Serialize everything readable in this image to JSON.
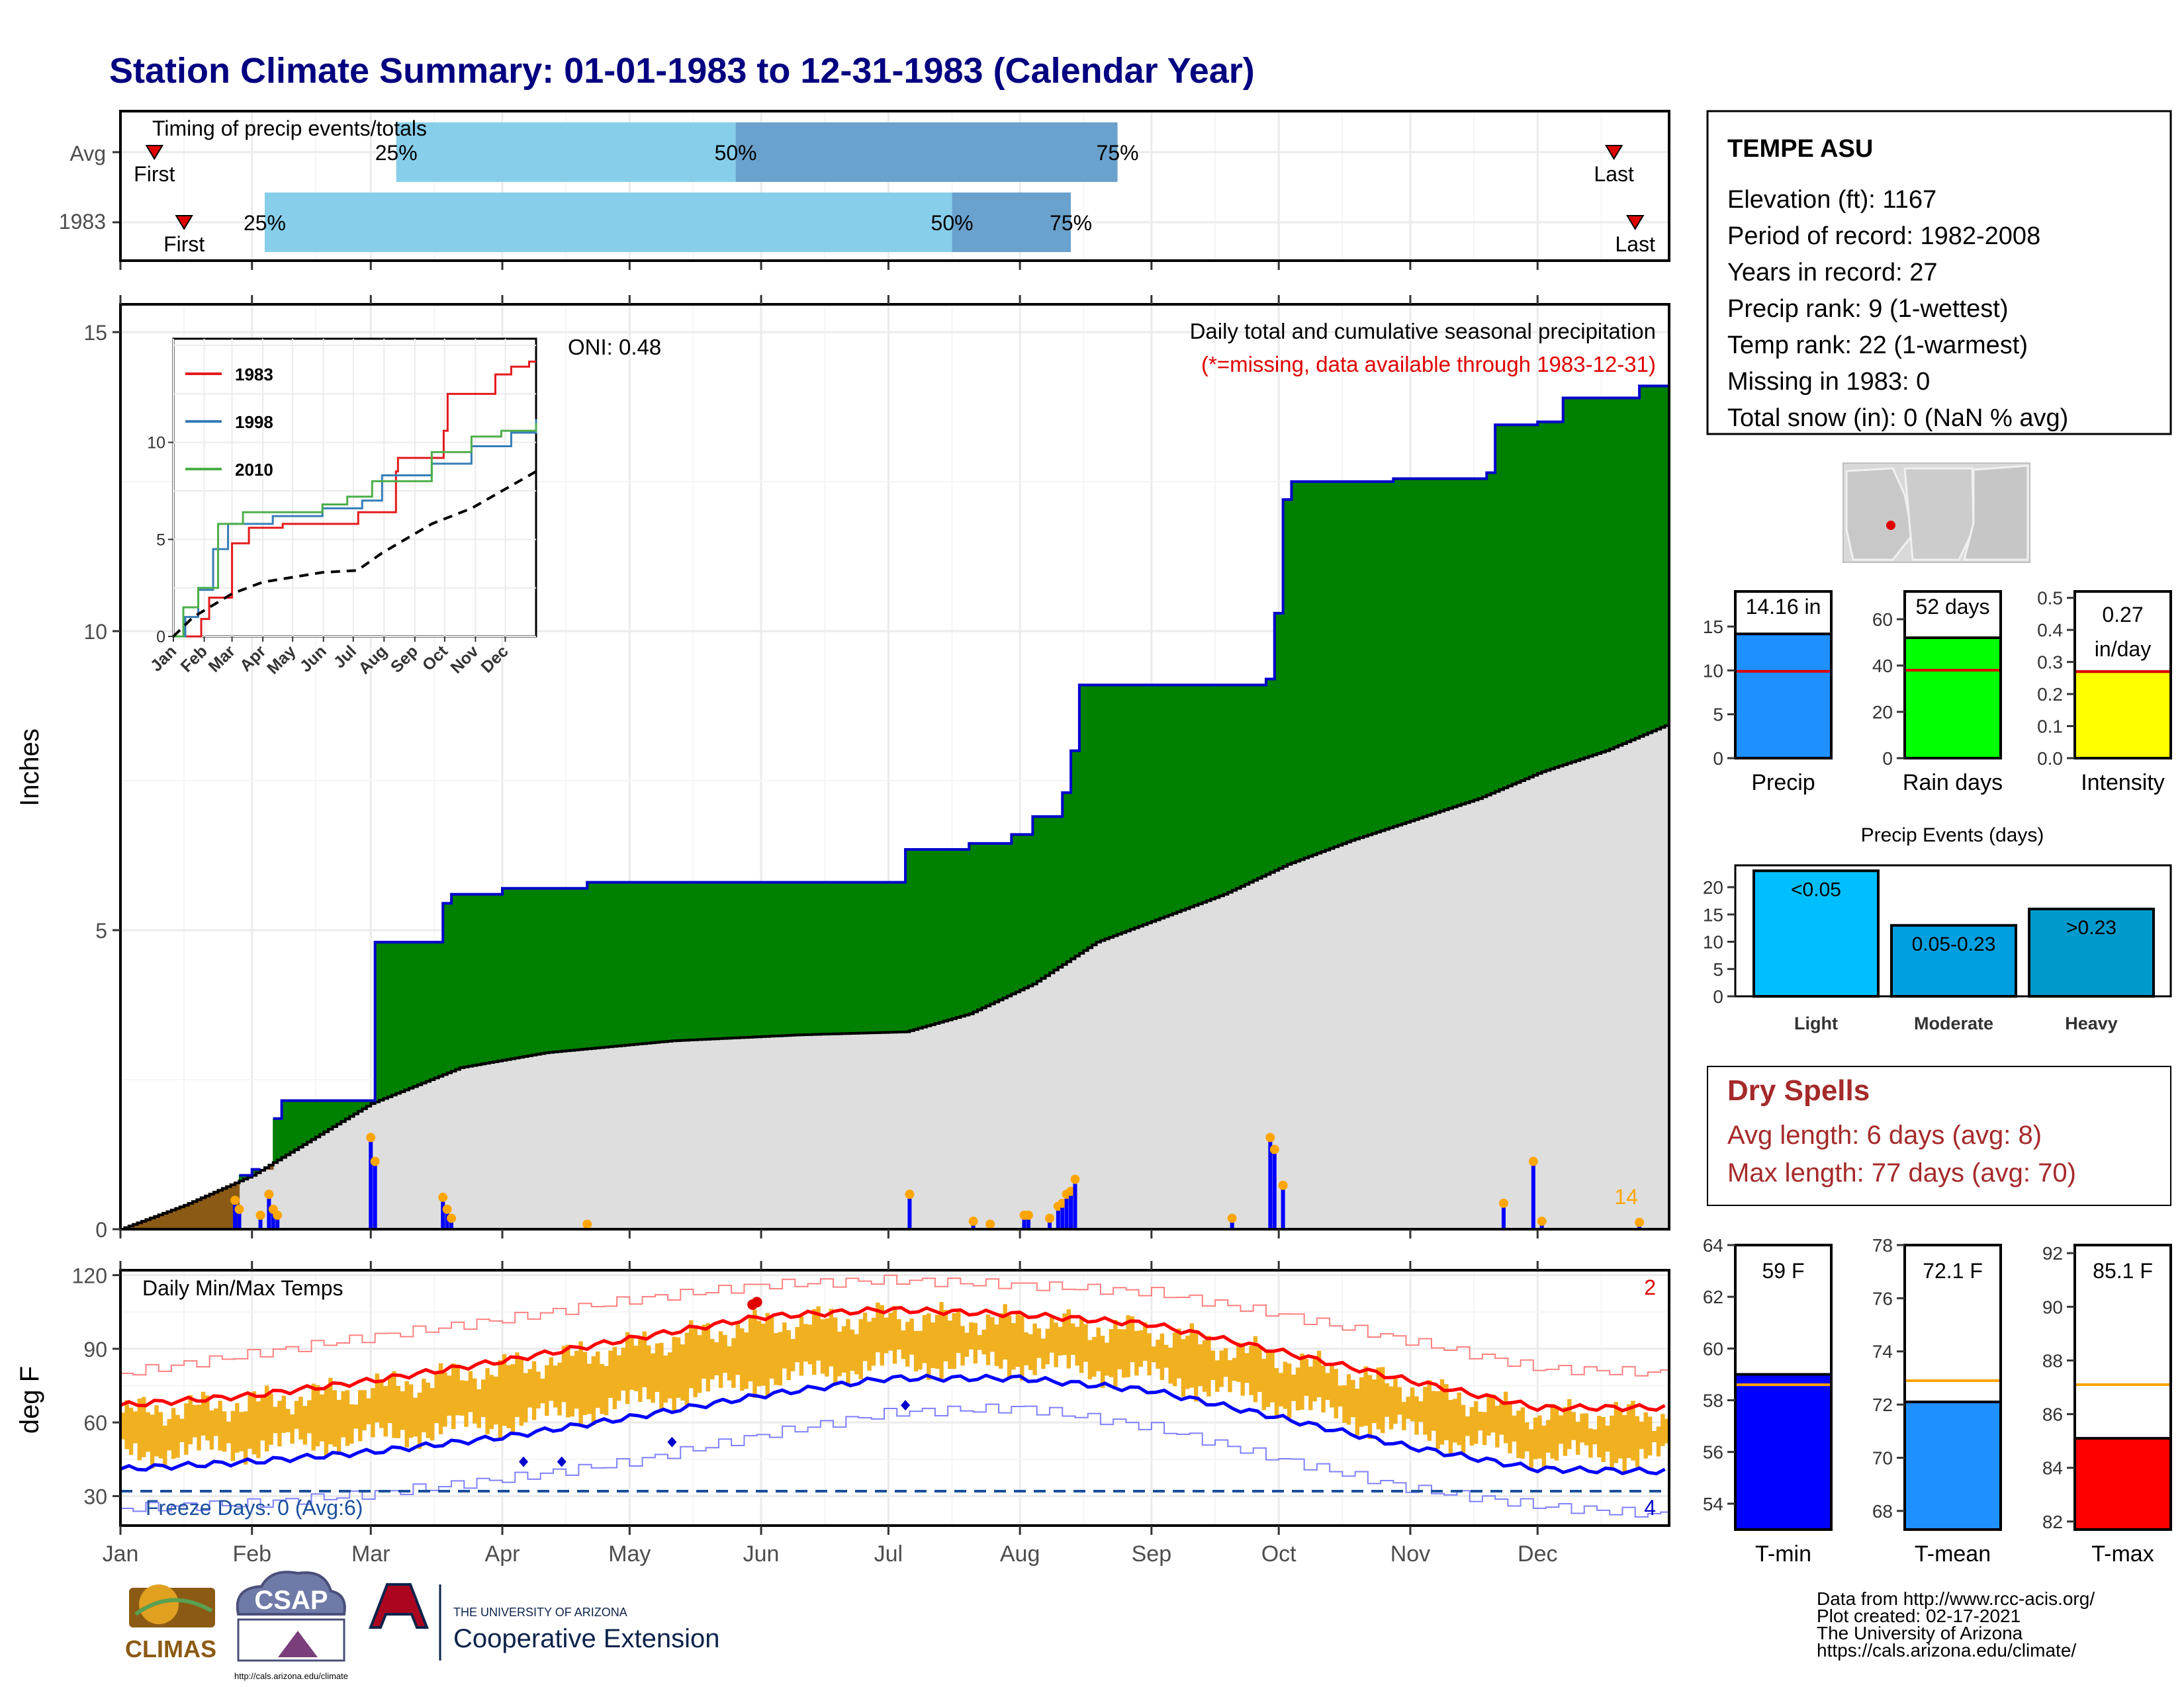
{
  "title": "Station Climate Summary: 01-01-1983 to 12-31-1983 (Calendar Year)",
  "timing": {
    "label": "Timing of precip events/totals",
    "rows": [
      {
        "name": "Avg",
        "first": 8,
        "p25": 65,
        "p50": 145,
        "p75": 235,
        "last": 352
      },
      {
        "name": "1983",
        "first": 15,
        "p25": 34,
        "p50": 196,
        "p75": 224,
        "last": 357
      }
    ],
    "first_label": "First",
    "last_label": "Last",
    "p25_label": "25%",
    "p50_label": "50%",
    "p75_label": "75%",
    "colors": {
      "early": "#87ceeb",
      "late": "#6aa2cd",
      "marker": "#e00000"
    }
  },
  "main": {
    "ylabel": "Inches",
    "header": "Daily total and cumulative seasonal precipitation",
    "missing_note": "(*=missing, data available through 1983-12-31)",
    "oni": "ONI: 0.48",
    "days_count_label": "14",
    "ylim": [
      0,
      15
    ],
    "yticks": [
      "0",
      "5",
      "10",
      "15"
    ],
    "colors": {
      "above": "#008000",
      "below": "#8b5a14",
      "normal": "#dedede",
      "cum_line": "#0000cc",
      "bars": "#0000ff",
      "dots": "#ffa500"
    }
  },
  "months": [
    "Jan",
    "Feb",
    "Mar",
    "Apr",
    "May",
    "Jun",
    "Jul",
    "Aug",
    "Sep",
    "Oct",
    "Nov",
    "Dec"
  ],
  "chart_data": [
    {
      "type": "area",
      "name": "cumulative_precip",
      "ylim": [
        0,
        15
      ],
      "cumulative_1983": [
        [
          0,
          0
        ],
        [
          28,
          0.9
        ],
        [
          31,
          1.0
        ],
        [
          36,
          1.85
        ],
        [
          38,
          2.15
        ],
        [
          59,
          2.15
        ],
        [
          60,
          4.8
        ],
        [
          74,
          4.8
        ],
        [
          76,
          5.45
        ],
        [
          78,
          5.6
        ],
        [
          90,
          5.7
        ],
        [
          110,
          5.8
        ],
        [
          183,
          5.8
        ],
        [
          185,
          6.35
        ],
        [
          200,
          6.45
        ],
        [
          210,
          6.6
        ],
        [
          215,
          6.9
        ],
        [
          222,
          7.3
        ],
        [
          224,
          8.0
        ],
        [
          226,
          9.1
        ],
        [
          270,
          9.2
        ],
        [
          272,
          10.3
        ],
        [
          274,
          12.2
        ],
        [
          276,
          12.5
        ],
        [
          300,
          12.55
        ],
        [
          322,
          12.65
        ],
        [
          324,
          13.45
        ],
        [
          334,
          13.5
        ],
        [
          340,
          13.9
        ],
        [
          357,
          13.9
        ],
        [
          358,
          14.1
        ],
        [
          365,
          14.16
        ]
      ],
      "normal_cumulative": [
        [
          0,
          0
        ],
        [
          15,
          0.4
        ],
        [
          31,
          0.9
        ],
        [
          59,
          2.1
        ],
        [
          80,
          2.7
        ],
        [
          100,
          2.95
        ],
        [
          130,
          3.15
        ],
        [
          160,
          3.25
        ],
        [
          185,
          3.3
        ],
        [
          200,
          3.6
        ],
        [
          215,
          4.1
        ],
        [
          230,
          4.8
        ],
        [
          245,
          5.2
        ],
        [
          260,
          5.6
        ],
        [
          275,
          6.1
        ],
        [
          290,
          6.5
        ],
        [
          305,
          6.85
        ],
        [
          320,
          7.2
        ],
        [
          335,
          7.65
        ],
        [
          350,
          8.0
        ],
        [
          365,
          8.45
        ]
      ],
      "daily_bars": [
        [
          27,
          0.45
        ],
        [
          28,
          0.3
        ],
        [
          33,
          0.2
        ],
        [
          35,
          0.55
        ],
        [
          36,
          0.3
        ],
        [
          37,
          0.2
        ],
        [
          59,
          1.5
        ],
        [
          60,
          1.1
        ],
        [
          76,
          0.5
        ],
        [
          77,
          0.3
        ],
        [
          78,
          0.15
        ],
        [
          100,
          0.02
        ],
        [
          110,
          0.05
        ],
        [
          186,
          0.55
        ],
        [
          201,
          0.1
        ],
        [
          205,
          0.05
        ],
        [
          213,
          0.2
        ],
        [
          214,
          0.2
        ],
        [
          219,
          0.15
        ],
        [
          221,
          0.35
        ],
        [
          222,
          0.4
        ],
        [
          223,
          0.55
        ],
        [
          224,
          0.6
        ],
        [
          225,
          0.8
        ],
        [
          262,
          0.15
        ],
        [
          271,
          1.5
        ],
        [
          272,
          1.3
        ],
        [
          274,
          0.7
        ],
        [
          326,
          0.4
        ],
        [
          333,
          1.1
        ],
        [
          335,
          0.1
        ],
        [
          358,
          0.08
        ]
      ]
    },
    {
      "type": "line",
      "name": "inset_cumulative",
      "ylim": [
        0,
        15
      ],
      "series": [
        {
          "name": "1983",
          "color": "#e41a1c",
          "points": [
            [
              0,
              0
            ],
            [
              28,
              0.9
            ],
            [
              36,
              2.0
            ],
            [
              59,
              4.8
            ],
            [
              76,
              5.6
            ],
            [
              110,
              5.8
            ],
            [
              183,
              5.8
            ],
            [
              186,
              6.4
            ],
            [
              224,
              8.5
            ],
            [
              226,
              9.2
            ],
            [
              272,
              10.6
            ],
            [
              276,
              12.5
            ],
            [
              324,
              13.5
            ],
            [
              340,
              13.9
            ],
            [
              358,
              14.16
            ],
            [
              365,
              14.16
            ]
          ]
        },
        {
          "name": "1998",
          "color": "#377eb8",
          "points": [
            [
              0,
              0
            ],
            [
              12,
              1.0
            ],
            [
              25,
              2.4
            ],
            [
              40,
              4.5
            ],
            [
              55,
              5.8
            ],
            [
              100,
              6.2
            ],
            [
              150,
              6.6
            ],
            [
              190,
              7.0
            ],
            [
              210,
              8.3
            ],
            [
              260,
              8.9
            ],
            [
              300,
              9.8
            ],
            [
              340,
              10.5
            ],
            [
              365,
              11.2
            ]
          ]
        },
        {
          "name": "2010",
          "color": "#4daf4a",
          "points": [
            [
              0,
              0
            ],
            [
              10,
              1.5
            ],
            [
              25,
              2.5
            ],
            [
              45,
              5.8
            ],
            [
              70,
              6.4
            ],
            [
              150,
              6.8
            ],
            [
              175,
              7.2
            ],
            [
              200,
              8.0
            ],
            [
              260,
              9.5
            ],
            [
              300,
              10.3
            ],
            [
              330,
              10.6
            ],
            [
              365,
              11.0
            ]
          ]
        },
        {
          "name": "Avg",
          "color": "#000000",
          "points": [
            [
              0,
              0
            ],
            [
              20,
              1.0
            ],
            [
              59,
              2.2
            ],
            [
              90,
              2.8
            ],
            [
              150,
              3.3
            ],
            [
              185,
              3.4
            ],
            [
              210,
              4.3
            ],
            [
              260,
              5.8
            ],
            [
              300,
              6.6
            ],
            [
              365,
              8.5
            ]
          ]
        }
      ],
      "yticks": [
        "0",
        "5",
        "10"
      ],
      "xticks": [
        "Jan",
        "Feb",
        "Mar",
        "Apr",
        "May",
        "Jun",
        "Jul",
        "Aug",
        "Sep",
        "Oct",
        "Nov",
        "Dec"
      ]
    },
    {
      "type": "line",
      "name": "daily_temps",
      "title": "Daily Min/Max Temps",
      "ylabel": "deg F",
      "ylim": [
        18,
        122
      ],
      "yticks": [
        "30",
        "60",
        "90",
        "120"
      ],
      "normal_max": [
        [
          0,
          67
        ],
        [
          31,
          71
        ],
        [
          59,
          77
        ],
        [
          90,
          85
        ],
        [
          120,
          94
        ],
        [
          151,
          103
        ],
        [
          181,
          106
        ],
        [
          212,
          104
        ],
        [
          243,
          100
        ],
        [
          273,
          89
        ],
        [
          304,
          77
        ],
        [
          334,
          66
        ],
        [
          365,
          66
        ]
      ],
      "normal_min": [
        [
          0,
          41
        ],
        [
          31,
          44
        ],
        [
          59,
          48
        ],
        [
          90,
          54
        ],
        [
          120,
          62
        ],
        [
          151,
          71
        ],
        [
          181,
          78
        ],
        [
          212,
          78
        ],
        [
          243,
          73
        ],
        [
          273,
          62
        ],
        [
          304,
          50
        ],
        [
          334,
          41
        ],
        [
          365,
          40
        ]
      ],
      "record_max": [
        [
          0,
          80
        ],
        [
          31,
          88
        ],
        [
          59,
          95
        ],
        [
          90,
          102
        ],
        [
          120,
          110
        ],
        [
          151,
          116
        ],
        [
          181,
          118
        ],
        [
          212,
          116
        ],
        [
          243,
          113
        ],
        [
          273,
          104
        ],
        [
          304,
          93
        ],
        [
          334,
          82
        ],
        [
          365,
          80
        ]
      ],
      "record_min": [
        [
          0,
          25
        ],
        [
          31,
          27
        ],
        [
          59,
          31
        ],
        [
          90,
          37
        ],
        [
          120,
          44
        ],
        [
          151,
          55
        ],
        [
          181,
          64
        ],
        [
          212,
          66
        ],
        [
          243,
          58
        ],
        [
          273,
          45
        ],
        [
          304,
          33
        ],
        [
          334,
          26
        ],
        [
          365,
          22
        ]
      ],
      "freeze_line": 32,
      "freeze_label": "Freeze Days: 0 (Avg:6)",
      "record_high_count": "2",
      "record_low_count": "4",
      "colors": {
        "range": "#f0b020",
        "normal_max": "#ff0000",
        "normal_min": "#0000ff",
        "freeze": "#1b4f9c"
      }
    },
    {
      "type": "table",
      "name": "station_info",
      "station": "TEMPE ASU",
      "lines": [
        "Elevation (ft): 1167",
        "Period of record: 1982-2008",
        "Years in record: 27",
        "Precip rank: 9 (1-wettest)",
        "Temp rank: 22 (1-warmest)",
        "Missing in 1983: 0",
        "Total snow (in): 0 (NaN % avg)"
      ]
    },
    {
      "type": "bar",
      "name": "precip_summary",
      "panels": [
        {
          "label": "Precip",
          "value": 14.16,
          "avg": 9.9,
          "value_label": "14.16 in",
          "ylim": [
            0,
            19
          ],
          "yticks": [
            "0",
            "5",
            "10",
            "15"
          ],
          "tick_values": [
            0,
            5,
            10,
            15
          ],
          "color": "#1e90ff"
        },
        {
          "label": "Rain days",
          "value": 52,
          "avg": 38,
          "value_label": "52 days",
          "ylim": [
            0,
            72
          ],
          "yticks": [
            "0",
            "20",
            "40",
            "60"
          ],
          "tick_values": [
            0,
            20,
            40,
            60
          ],
          "color": "#00ff00"
        },
        {
          "label": "Intensity",
          "value": 0.27,
          "avg": 0.27,
          "value_label": "0.27",
          "value_label2": "in/day",
          "ylim": [
            0,
            0.52
          ],
          "yticks": [
            "0.0",
            "0.1",
            "0.2",
            "0.3",
            "0.4",
            "0.5"
          ],
          "tick_values": [
            0,
            0.1,
            0.2,
            0.3,
            0.4,
            0.5
          ],
          "color": "#ffff00"
        }
      ]
    },
    {
      "type": "bar",
      "name": "precip_events",
      "title": "Precip Events (days)",
      "categories": [
        "Light",
        "Moderate",
        "Heavy"
      ],
      "bar_labels": [
        "<0.05",
        "0.05-0.23",
        ">0.23"
      ],
      "values": [
        23,
        13,
        16
      ],
      "ylim": [
        0,
        24
      ],
      "yticks": [
        "0",
        "5",
        "10",
        "15",
        "20"
      ],
      "tick_values": [
        0,
        5,
        10,
        15,
        20
      ],
      "colors": [
        "#00bfff",
        "#009fdf",
        "#0099cc"
      ]
    },
    {
      "type": "bar",
      "name": "temp_summary",
      "panels": [
        {
          "label": "T-min",
          "value": 59,
          "avg": 58.6,
          "value_label": "59 F",
          "ylim": [
            53,
            64
          ],
          "yticks": [
            "54",
            "56",
            "58",
            "60",
            "62",
            "64"
          ],
          "tick_values": [
            54,
            56,
            58,
            60,
            62,
            64
          ],
          "color": "#0000ff"
        },
        {
          "label": "T-mean",
          "value": 72.1,
          "avg": 72.9,
          "value_label": "72.1 F",
          "ylim": [
            67.3,
            78
          ],
          "yticks": [
            "68",
            "70",
            "72",
            "74",
            "76",
            "78"
          ],
          "tick_values": [
            68,
            70,
            72,
            74,
            76,
            78
          ],
          "color": "#1e90ff"
        },
        {
          "label": "T-max",
          "value": 85.1,
          "avg": 87.1,
          "value_label": "85.1 F",
          "ylim": [
            81.7,
            92.3
          ],
          "yticks": [
            "82",
            "84",
            "86",
            "88",
            "90",
            "92"
          ],
          "tick_values": [
            82,
            84,
            86,
            88,
            90,
            92
          ],
          "color": "#ff0000"
        }
      ]
    }
  ],
  "dry_spells": {
    "title": "Dry Spells",
    "avg_length": "Avg length: 6 days (avg: 8)",
    "max_length": "Max length: 77 days (avg: 70)",
    "color": "#a52a2a"
  },
  "footer": {
    "lines": [
      "Data from http://www.rcc-acis.org/",
      "Plot created: 02-17-2021",
      "The University of Arizona",
      "https://cals.arizona.edu/climate/"
    ],
    "logos": {
      "climas": "CLIMAS",
      "csap": "CSAP",
      "csap_url": "http://cals.arizona.edu/climate",
      "ua_small": "THE UNIVERSITY OF ARIZONA",
      "ua_main": "Cooperative Extension"
    }
  }
}
